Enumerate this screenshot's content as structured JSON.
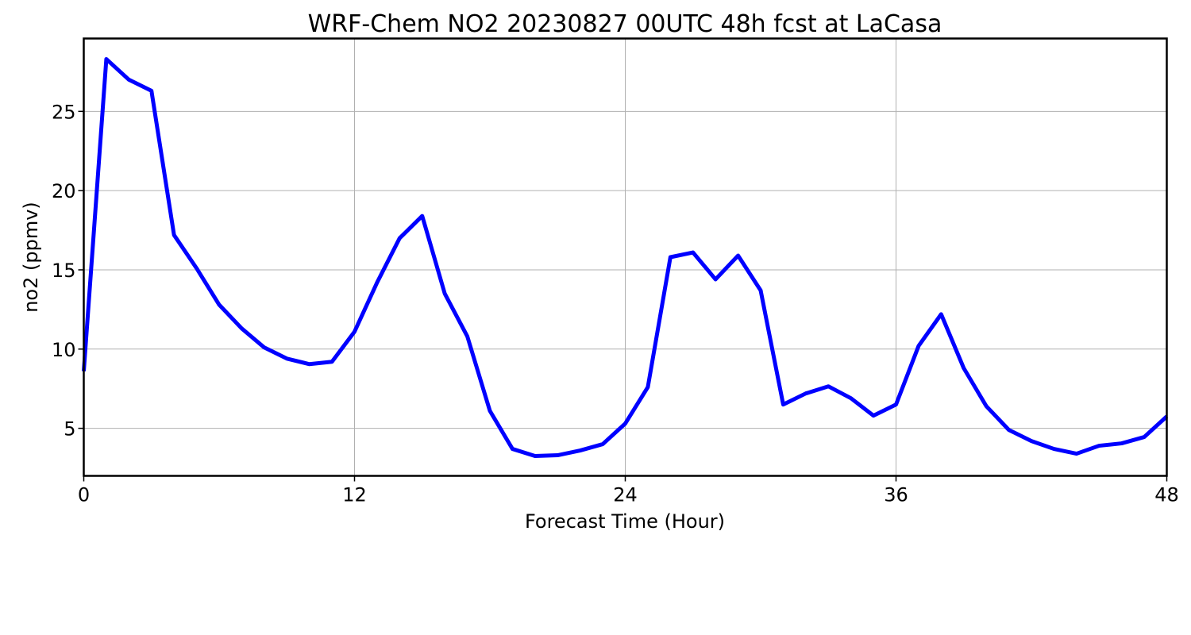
{
  "chart_data": {
    "type": "line",
    "title": "WRF-Chem NO2  20230827 00UTC 48h fcst at LaCasa",
    "xlabel": "Forecast Time (Hour)",
    "ylabel": "no2  (ppmv)",
    "xlim": [
      0,
      48
    ],
    "ylim": [
      2.0,
      29.6
    ],
    "xticks": [
      0,
      12,
      24,
      36,
      48
    ],
    "yticks": [
      5,
      10,
      15,
      20,
      25
    ],
    "grid": true,
    "series": [
      {
        "color": "#0000ff",
        "x": [
          0,
          1,
          2,
          3,
          4,
          5,
          6,
          7,
          8,
          9,
          10,
          11,
          12,
          13,
          14,
          15,
          16,
          17,
          18,
          19,
          20,
          21,
          22,
          23,
          24,
          25,
          26,
          27,
          28,
          29,
          30,
          31,
          32,
          33,
          34,
          35,
          36,
          37,
          38,
          39,
          40,
          41,
          42,
          43,
          44,
          45,
          46,
          47,
          48
        ],
        "values": [
          8.6,
          28.3,
          27.0,
          26.3,
          17.2,
          15.1,
          12.8,
          11.3,
          10.1,
          9.4,
          9.05,
          9.2,
          11.1,
          14.2,
          17.0,
          18.4,
          13.5,
          10.8,
          6.1,
          3.7,
          3.25,
          3.3,
          3.6,
          4.0,
          5.3,
          7.6,
          15.8,
          16.1,
          14.4,
          15.9,
          13.7,
          6.5,
          7.2,
          7.65,
          6.9,
          5.8,
          6.5,
          10.2,
          12.2,
          8.8,
          6.4,
          4.9,
          4.2,
          3.7,
          3.4,
          3.9,
          4.05,
          4.45,
          5.75
        ]
      }
    ]
  }
}
